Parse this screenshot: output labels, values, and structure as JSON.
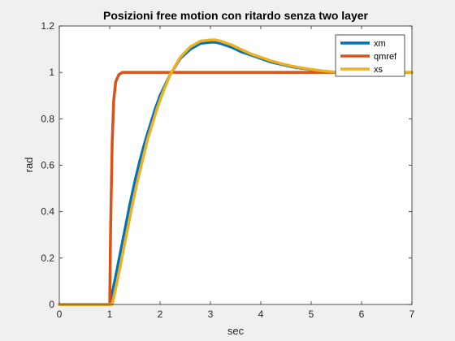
{
  "chart_data": {
    "type": "line",
    "title": "Posizioni free motion con ritardo senza two layer",
    "xlabel": "sec",
    "ylabel": "rad",
    "xlim": [
      0,
      7
    ],
    "ylim": [
      0,
      1.2
    ],
    "xticks": [
      0,
      1,
      2,
      3,
      4,
      5,
      6,
      7
    ],
    "xtick_labels": [
      "0",
      "1",
      "2",
      "3",
      "4",
      "5",
      "6",
      "7"
    ],
    "yticks": [
      0,
      0.2,
      0.4,
      0.6,
      0.8,
      1,
      1.2
    ],
    "ytick_labels": [
      "0",
      "0.2",
      "0.4",
      "0.6",
      "0.8",
      "1",
      "1.2"
    ],
    "grid": false,
    "legend_position": "top-right",
    "series": [
      {
        "name": "xm",
        "color": "#0072BD",
        "x": [
          0,
          1.0,
          1.1,
          1.2,
          1.3,
          1.4,
          1.5,
          1.6,
          1.7,
          1.8,
          1.9,
          2.0,
          2.2,
          2.4,
          2.6,
          2.8,
          3.0,
          3.1,
          3.2,
          3.4,
          3.6,
          3.8,
          4.0,
          4.2,
          4.4,
          4.6,
          4.8,
          5.0,
          5.2,
          5.4,
          5.6,
          5.8,
          6.0,
          6.2,
          6.5,
          7.0
        ],
        "y": [
          0,
          0,
          0.1,
          0.21,
          0.32,
          0.43,
          0.53,
          0.62,
          0.7,
          0.77,
          0.84,
          0.9,
          0.99,
          1.06,
          1.1,
          1.125,
          1.13,
          1.13,
          1.125,
          1.11,
          1.09,
          1.075,
          1.06,
          1.045,
          1.035,
          1.025,
          1.018,
          1.012,
          1.006,
          1.002,
          0.998,
          0.996,
          0.995,
          0.996,
          0.998,
          1.0
        ]
      },
      {
        "name": "qmref",
        "color": "#D95319",
        "x": [
          0,
          1.0,
          1.02,
          1.05,
          1.08,
          1.12,
          1.18,
          1.25,
          1.4,
          7.0
        ],
        "y": [
          0,
          0,
          0.35,
          0.7,
          0.88,
          0.96,
          0.99,
          1.0,
          1.0,
          1.0
        ]
      },
      {
        "name": "xs",
        "color": "#EDB120",
        "x": [
          0,
          1.05,
          1.15,
          1.25,
          1.35,
          1.45,
          1.55,
          1.65,
          1.75,
          1.85,
          1.95,
          2.05,
          2.2,
          2.4,
          2.6,
          2.8,
          3.0,
          3.1,
          3.2,
          3.4,
          3.6,
          3.8,
          4.0,
          4.2,
          4.4,
          4.6,
          4.8,
          5.0,
          5.2,
          5.4,
          5.6,
          5.8,
          6.0,
          6.2,
          6.5,
          7.0
        ],
        "y": [
          0,
          0,
          0.1,
          0.21,
          0.32,
          0.43,
          0.53,
          0.62,
          0.71,
          0.78,
          0.85,
          0.91,
          0.99,
          1.065,
          1.11,
          1.135,
          1.14,
          1.14,
          1.135,
          1.12,
          1.1,
          1.08,
          1.065,
          1.05,
          1.038,
          1.028,
          1.02,
          1.013,
          1.007,
          1.003,
          0.999,
          0.997,
          0.996,
          0.997,
          0.999,
          1.0
        ]
      }
    ]
  }
}
